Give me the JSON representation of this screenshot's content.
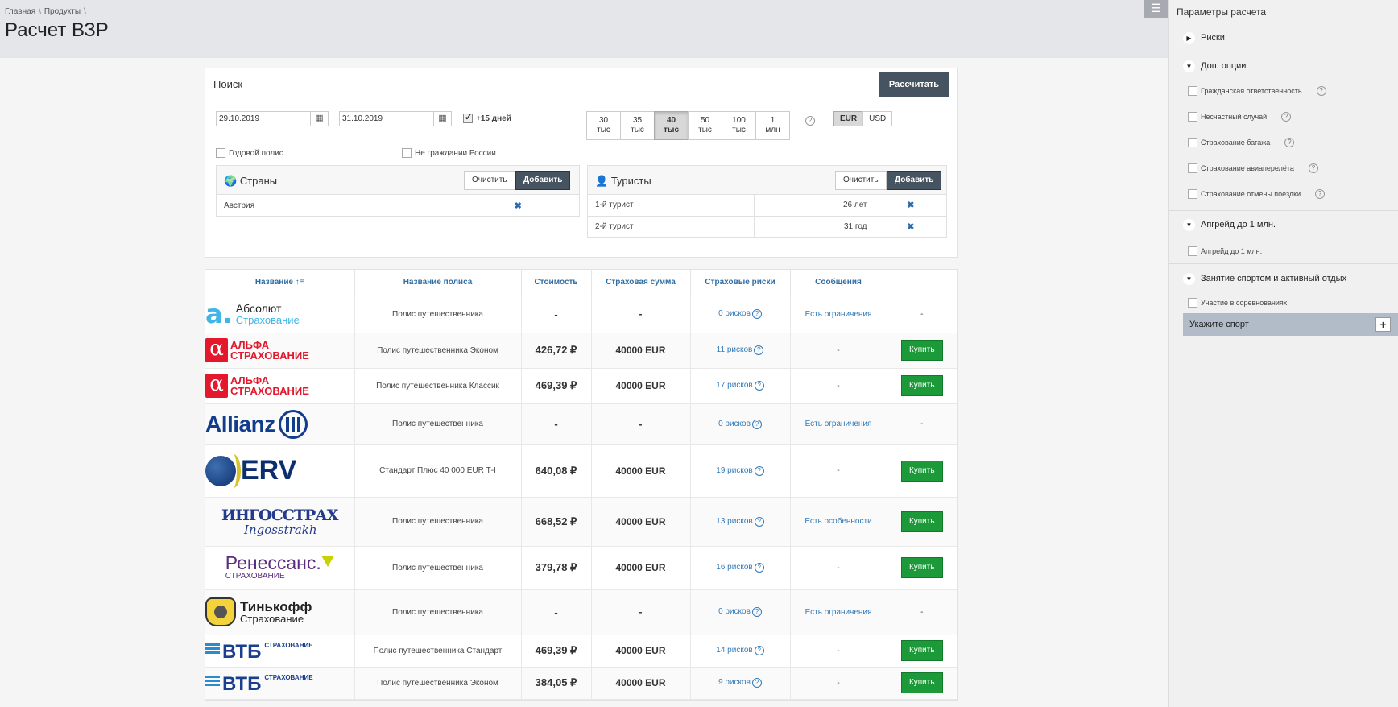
{
  "breadcrumb": {
    "items": [
      "Главная",
      "Продукты"
    ],
    "sep": "\\"
  },
  "page_title": "Расчет ВЗР",
  "menu_icon": "☰",
  "search": {
    "title": "Поиск",
    "calc_button": "Рассчитать",
    "date_from": "29.10.2019",
    "date_to": "31.10.2019",
    "plus15_label": "+15 дней",
    "plus15_checked": true,
    "annual_label": "Годовой полис",
    "non_citizen_label": "Не граждании России",
    "sums": [
      {
        "top": "30",
        "bottom": "тыс",
        "active": false
      },
      {
        "top": "35",
        "bottom": "тыс",
        "active": false
      },
      {
        "top": "40",
        "bottom": "тыс",
        "active": true
      },
      {
        "top": "50",
        "bottom": "тыс",
        "active": false
      },
      {
        "top": "100",
        "bottom": "тыс",
        "active": false
      },
      {
        "top": "1",
        "bottom": "млн",
        "active": false
      }
    ],
    "help": "?",
    "currencies": [
      {
        "label": "EUR",
        "active": true
      },
      {
        "label": "USD",
        "active": false
      }
    ]
  },
  "countries": {
    "icon": "globe-icon",
    "title": "Страны",
    "clear": "Очистить",
    "add": "Добавить",
    "rows": [
      {
        "name": "Австрия"
      }
    ],
    "remove": "✖"
  },
  "tourists": {
    "icon": "user-plus-icon",
    "title": "Туристы",
    "clear": "Очистить",
    "add": "Добавить",
    "rows": [
      {
        "name": "1-й турист",
        "age": "26 лет"
      },
      {
        "name": "2-й турист",
        "age": "31 год"
      }
    ],
    "remove": "✖"
  },
  "results": {
    "headers": [
      "Название ↑≡",
      "Название полиса",
      "Стоимость",
      "Страховая сумма",
      "Страховые риски",
      "Сообщения",
      ""
    ],
    "rows": [
      {
        "logo": "absolut",
        "policy": "Полис путешественника",
        "price": "-",
        "sum": "-",
        "risks": "0 рисков",
        "msg": "Есть ограничения",
        "msg_link": true,
        "buy": false
      },
      {
        "logo": "alfa",
        "policy": "Полис путешественника Эконом",
        "price": "426,72 ₽",
        "sum": "40000 EUR",
        "risks": "11 рисков",
        "msg": "-",
        "msg_link": false,
        "buy": true
      },
      {
        "logo": "alfa",
        "policy": "Полис путешественника Классик",
        "price": "469,39 ₽",
        "sum": "40000 EUR",
        "risks": "17 рисков",
        "msg": "-",
        "msg_link": false,
        "buy": true
      },
      {
        "logo": "allianz",
        "policy": "Полис путешественника",
        "price": "-",
        "sum": "-",
        "risks": "0 рисков",
        "msg": "Есть ограничения",
        "msg_link": true,
        "buy": false
      },
      {
        "logo": "erv",
        "policy": "Стандарт Плюс 40 000 EUR Т-I",
        "price": "640,08 ₽",
        "sum": "40000 EUR",
        "risks": "19 рисков",
        "msg": "-",
        "msg_link": false,
        "buy": true
      },
      {
        "logo": "ingos",
        "policy": "Полис путешественника",
        "price": "668,52 ₽",
        "sum": "40000 EUR",
        "risks": "13 рисков",
        "msg": "Есть особенности",
        "msg_link": true,
        "buy": true
      },
      {
        "logo": "renessans",
        "policy": "Полис путешественника",
        "price": "379,78 ₽",
        "sum": "40000 EUR",
        "risks": "16 рисков",
        "msg": "-",
        "msg_link": false,
        "buy": true
      },
      {
        "logo": "tinkoff",
        "policy": "Полис путешественника",
        "price": "-",
        "sum": "-",
        "risks": "0 рисков",
        "msg": "Есть ограничения",
        "msg_link": true,
        "buy": false
      },
      {
        "logo": "vtb",
        "policy": "Полис путешественника Стандарт",
        "price": "469,39 ₽",
        "sum": "40000 EUR",
        "risks": "14 рисков",
        "msg": "-",
        "msg_link": false,
        "buy": true
      },
      {
        "logo": "vtb",
        "policy": "Полис путешественника Эконом",
        "price": "384,05 ₽",
        "sum": "40000 EUR",
        "risks": "9 рисков",
        "msg": "-",
        "msg_link": false,
        "buy": true
      }
    ],
    "buy_label": "Купить",
    "dash": "-"
  },
  "logos": {
    "absolut": {
      "mark": "a.",
      "t1": "Абсолют",
      "t2": "Страхование"
    },
    "alfa": {
      "mark": "α",
      "t1": "АЛЬФА",
      "t2": "СТРАХОВАНИЕ"
    },
    "allianz": {
      "t1": "Allianz"
    },
    "erv": {
      "t1": "ERV"
    },
    "ingos": {
      "t1": "ИНГОССТРАХ",
      "t2": "Ingosstrakh"
    },
    "renessans": {
      "t1": "Ренессанс.",
      "t2": "СТРАХОВАНИЕ"
    },
    "tinkoff": {
      "t1": "Тинькофф",
      "t2": "Страхование"
    },
    "vtb": {
      "t1": "ВТБ",
      "t2": "СТРАХОВАНИЕ"
    }
  },
  "sidebar": {
    "title": "Параметры расчета",
    "sections": [
      {
        "label": "Риски",
        "expanded": false
      },
      {
        "label": "Доп. опции",
        "expanded": true
      },
      {
        "label": "Апгрейд до 1 млн.",
        "expanded": true
      },
      {
        "label": "Занятие спортом и активный отдых",
        "expanded": true
      }
    ],
    "dop_options": [
      "Гражданская ответственность",
      "Несчастный случай",
      "Страхование багажа",
      "Страхование авиаперелёта",
      "Страхование отмены поездки"
    ],
    "upgrade_option": "Апгрейд до 1 млн.",
    "sport_option": "Участие в соревнованиях",
    "sport_select": "Укажите спорт",
    "plus": "+"
  },
  "colors": {
    "accent": "#465360",
    "link": "#337ab7",
    "buy": "#1c9a3a",
    "header_bg": "#e4e6ea"
  }
}
